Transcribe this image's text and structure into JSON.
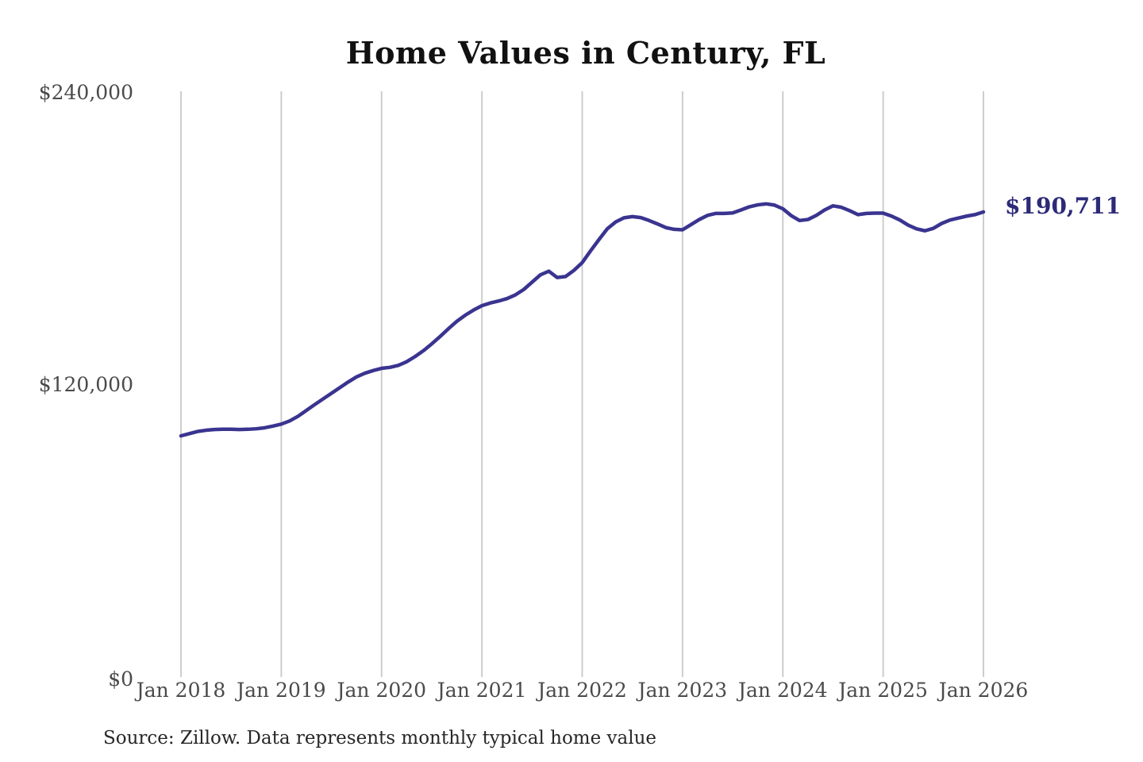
{
  "title": "Home Values in Century, FL",
  "end_label": "$190,711",
  "source_note": "Source: Zillow. Data represents monthly typical home value",
  "colors": {
    "background": "#ffffff",
    "line": "#3a3490",
    "end_label": "#2d2a78",
    "gridline": "#cdcdcd",
    "title_text": "#111111",
    "axis_text": "#4a4a4a",
    "source_text": "#272727"
  },
  "chart_data": {
    "type": "line",
    "title": "Home Values in Century, FL",
    "xlabel": "",
    "ylabel": "",
    "ylim": [
      0,
      240000
    ],
    "y_ticks": [
      240000,
      120000,
      0
    ],
    "y_tick_labels": [
      "$240,000",
      "$120,000",
      "$0"
    ],
    "x_tick_labels": [
      "Jan 2018",
      "Jan 2019",
      "Jan 2020",
      "Jan 2021",
      "Jan 2022",
      "Jan 2023",
      "Jan 2024",
      "Jan 2025",
      "Jan 2026"
    ],
    "grid": "vertical-only",
    "legend_position": "none",
    "frequency": "monthly",
    "x_start": "2018-01",
    "x_end": "2026-01",
    "end_value": 190711,
    "values": [
      99200,
      100100,
      101000,
      101500,
      101800,
      101900,
      101900,
      101800,
      101900,
      102100,
      102500,
      103200,
      104000,
      105300,
      107200,
      109600,
      112000,
      114300,
      116600,
      118900,
      121200,
      123300,
      124800,
      125900,
      126800,
      127200,
      128000,
      129500,
      131600,
      134000,
      136800,
      139800,
      143000,
      146000,
      148500,
      150600,
      152400,
      153500,
      154300,
      155300,
      156800,
      159000,
      162000,
      165000,
      166500,
      163900,
      164300,
      166800,
      170000,
      174800,
      179400,
      183800,
      186600,
      188300,
      188800,
      188400,
      187200,
      185800,
      184300,
      183600,
      183400,
      185500,
      187600,
      189300,
      190100,
      190100,
      190300,
      191500,
      192800,
      193600,
      194000,
      193500,
      192000,
      189200,
      187200,
      187600,
      189300,
      191500,
      193200,
      192600,
      191200,
      189600,
      190100,
      190200,
      190200,
      189000,
      187400,
      185300,
      183800,
      183000,
      184000,
      186000,
      187400,
      188200,
      189000,
      189600,
      190711
    ]
  }
}
